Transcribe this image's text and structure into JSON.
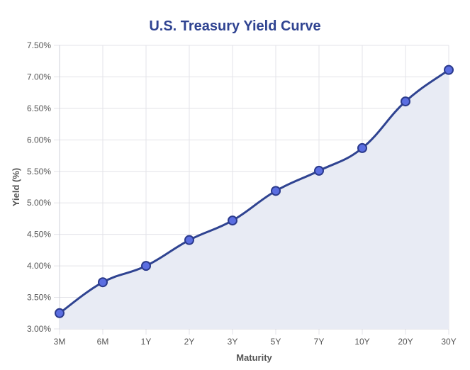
{
  "chart_data": {
    "type": "line",
    "title": "U.S. Treasury Yield Curve",
    "xlabel": "Maturity",
    "ylabel": "Yield (%)",
    "categories": [
      "3M",
      "6M",
      "1Y",
      "2Y",
      "3Y",
      "5Y",
      "7Y",
      "10Y",
      "20Y",
      "30Y"
    ],
    "series": [
      {
        "name": "Yield",
        "values": [
          3.25,
          3.74,
          4.0,
          4.41,
          4.72,
          5.19,
          5.51,
          5.87,
          6.61,
          7.11
        ]
      }
    ],
    "ylim": [
      3.0,
      7.5
    ],
    "yticks": [
      "3.00%",
      "3.50%",
      "4.00%",
      "4.50%",
      "5.00%",
      "5.50%",
      "6.00%",
      "6.50%",
      "7.00%",
      "7.50%"
    ],
    "grid": true,
    "fill_area": true,
    "legend": "none"
  },
  "colors": {
    "title": "#2f4391",
    "line": "#2f4391",
    "marker_fill": "#5b6ee1",
    "marker_stroke": "#2b3a8c",
    "area_fill": "#e8ebf4",
    "grid": "#e3e3e8",
    "tick_text": "#555555"
  }
}
